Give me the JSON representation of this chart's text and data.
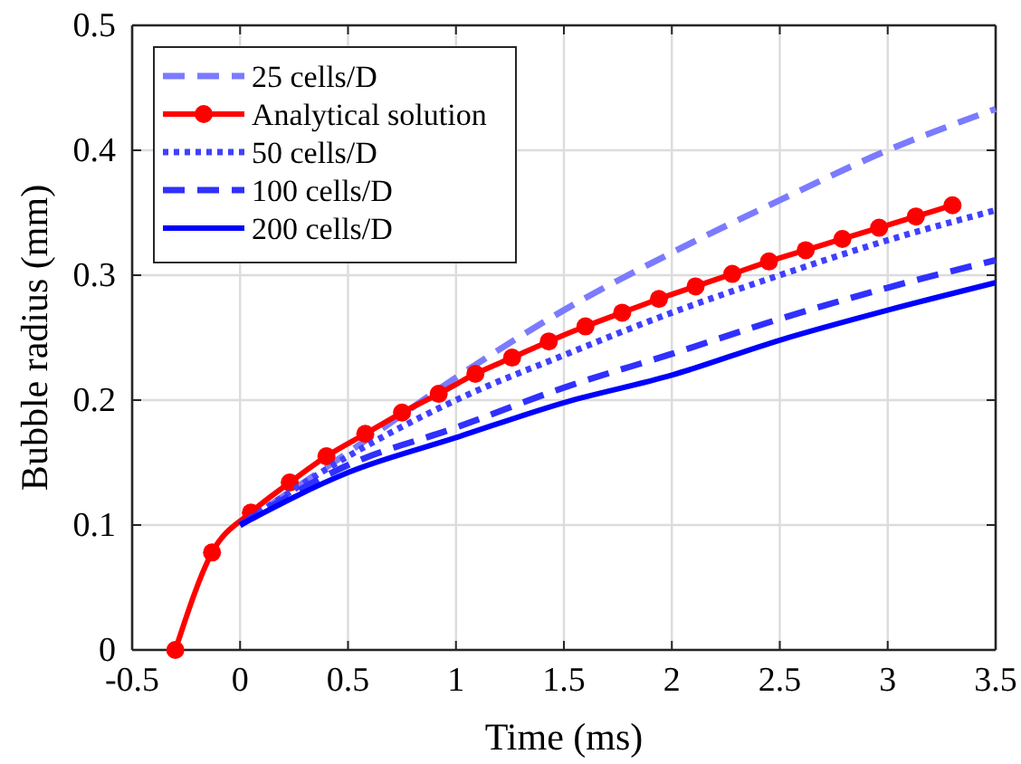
{
  "chart_data": {
    "type": "line",
    "xlabel": "Time (ms)",
    "ylabel": "Bubble radius (mm)",
    "xlim": [
      -0.5,
      3.5
    ],
    "xticks": [
      -0.5,
      0,
      0.5,
      1,
      1.5,
      2,
      2.5,
      3,
      3.5
    ],
    "ylim": [
      0,
      0.5
    ],
    "yticks": [
      0,
      0.1,
      0.2,
      0.3,
      0.4,
      0.5
    ],
    "grid": true,
    "legend": "top left",
    "series": [
      {
        "name": "25 cells/D",
        "color": "#7b7bff",
        "line_style": "dashed",
        "marker": "none",
        "x": [
          0,
          0.5,
          1,
          1.5,
          2,
          2.5,
          3,
          3.5
        ],
        "values": [
          0.1,
          0.158,
          0.218,
          0.272,
          0.318,
          0.36,
          0.4,
          0.433
        ]
      },
      {
        "name": "Analytical solution",
        "color": "#ff0000",
        "line_style": "solid",
        "marker": "circle",
        "x": [
          -0.3,
          -0.13,
          0.05,
          0.23,
          0.4,
          0.58,
          0.75,
          0.92,
          1.09,
          1.26,
          1.43,
          1.6,
          1.77,
          1.94,
          2.11,
          2.28,
          2.45,
          2.62,
          2.79,
          2.96,
          3.13,
          3.3
        ],
        "values": [
          0,
          0.078,
          0.11,
          0.134,
          0.155,
          0.173,
          0.19,
          0.205,
          0.221,
          0.234,
          0.247,
          0.259,
          0.27,
          0.281,
          0.291,
          0.301,
          0.311,
          0.32,
          0.329,
          0.338,
          0.347,
          0.356
        ]
      },
      {
        "name": "50 cells/D",
        "color": "#4040ff",
        "line_style": "dotted",
        "marker": "none",
        "x": [
          0,
          0.5,
          1,
          1.5,
          2,
          2.5,
          3,
          3.5
        ],
        "values": [
          0.1,
          0.155,
          0.2,
          0.236,
          0.27,
          0.3,
          0.328,
          0.352
        ]
      },
      {
        "name": "100 cells/D",
        "color": "#3030ff",
        "line_style": "dashed",
        "marker": "none",
        "x": [
          0,
          0.5,
          1,
          1.5,
          2,
          2.5,
          3,
          3.5
        ],
        "values": [
          0.1,
          0.148,
          0.178,
          0.21,
          0.237,
          0.265,
          0.29,
          0.312
        ]
      },
      {
        "name": "200 cells/D",
        "color": "#0000ff",
        "line_style": "solid",
        "marker": "none",
        "x": [
          0,
          0.5,
          1,
          1.5,
          2,
          2.5,
          3,
          3.5
        ],
        "values": [
          0.1,
          0.142,
          0.17,
          0.198,
          0.22,
          0.248,
          0.272,
          0.294
        ]
      }
    ]
  }
}
